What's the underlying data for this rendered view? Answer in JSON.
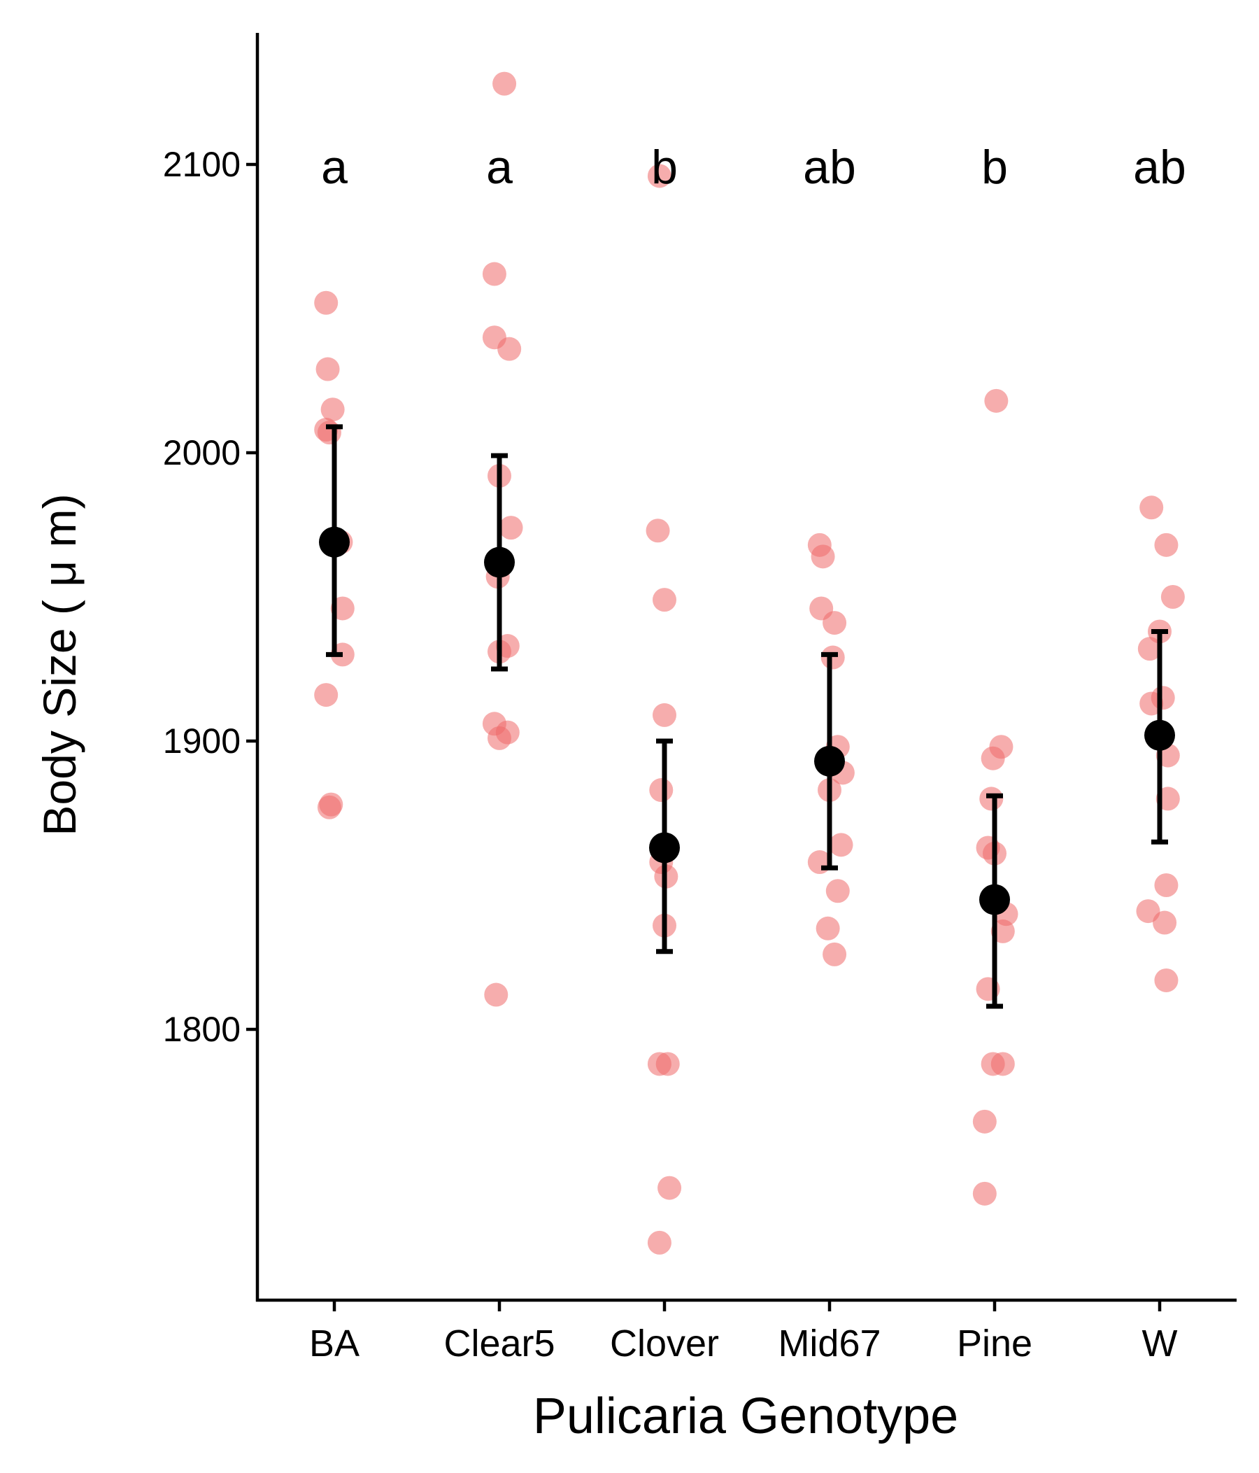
{
  "chart_data": {
    "type": "scatter",
    "title": "",
    "xlabel": "Pulicaria Genotype",
    "ylabel": "Body Size ( μ m)",
    "categories": [
      "BA",
      "Clear5",
      "Clover",
      "Mid67",
      "Pine",
      "W"
    ],
    "yticks": [
      1800,
      1900,
      2000,
      2100
    ],
    "ylim": [
      1705,
      2145
    ],
    "grid": false,
    "legend": "none",
    "colors": {
      "points": "#ee6a6a",
      "summary": "#000000",
      "axis": "#000000"
    },
    "significance_letters": [
      "a",
      "a",
      "b",
      "ab",
      "b",
      "ab"
    ],
    "summary": [
      {
        "category": "BA",
        "mean": 1969,
        "lower": 1930,
        "upper": 2009
      },
      {
        "category": "Clear5",
        "mean": 1962,
        "lower": 1925,
        "upper": 1999
      },
      {
        "category": "Clover",
        "mean": 1863,
        "lower": 1827,
        "upper": 1900
      },
      {
        "category": "Mid67",
        "mean": 1893,
        "lower": 1856,
        "upper": 1930
      },
      {
        "category": "Pine",
        "mean": 1845,
        "lower": 1808,
        "upper": 1881
      },
      {
        "category": "W",
        "mean": 1902,
        "lower": 1865,
        "upper": 1938
      }
    ],
    "points": [
      {
        "category": "BA",
        "y": 2052,
        "dx": -0.05
      },
      {
        "category": "BA",
        "y": 2029,
        "dx": -0.04
      },
      {
        "category": "BA",
        "y": 2015,
        "dx": -0.01
      },
      {
        "category": "BA",
        "y": 2008,
        "dx": -0.05
      },
      {
        "category": "BA",
        "y": 2007,
        "dx": -0.03
      },
      {
        "category": "BA",
        "y": 1969,
        "dx": 0.04
      },
      {
        "category": "BA",
        "y": 1946,
        "dx": 0.05
      },
      {
        "category": "BA",
        "y": 1930,
        "dx": 0.05
      },
      {
        "category": "BA",
        "y": 1916,
        "dx": -0.05
      },
      {
        "category": "BA",
        "y": 1878,
        "dx": -0.02
      },
      {
        "category": "BA",
        "y": 1877,
        "dx": -0.03
      },
      {
        "category": "Clear5",
        "y": 2128,
        "dx": 0.03
      },
      {
        "category": "Clear5",
        "y": 2062,
        "dx": -0.03
      },
      {
        "category": "Clear5",
        "y": 2040,
        "dx": -0.03
      },
      {
        "category": "Clear5",
        "y": 2036,
        "dx": 0.06
      },
      {
        "category": "Clear5",
        "y": 1992,
        "dx": 0.0
      },
      {
        "category": "Clear5",
        "y": 1974,
        "dx": 0.07
      },
      {
        "category": "Clear5",
        "y": 1957,
        "dx": -0.01
      },
      {
        "category": "Clear5",
        "y": 1933,
        "dx": 0.05
      },
      {
        "category": "Clear5",
        "y": 1931,
        "dx": 0.0
      },
      {
        "category": "Clear5",
        "y": 1906,
        "dx": -0.03
      },
      {
        "category": "Clear5",
        "y": 1903,
        "dx": 0.05
      },
      {
        "category": "Clear5",
        "y": 1901,
        "dx": 0.0
      },
      {
        "category": "Clear5",
        "y": 1812,
        "dx": -0.02
      },
      {
        "category": "Clover",
        "y": 2096,
        "dx": -0.03
      },
      {
        "category": "Clover",
        "y": 1973,
        "dx": -0.04
      },
      {
        "category": "Clover",
        "y": 1949,
        "dx": 0.0
      },
      {
        "category": "Clover",
        "y": 1909,
        "dx": 0.0
      },
      {
        "category": "Clover",
        "y": 1883,
        "dx": -0.02
      },
      {
        "category": "Clover",
        "y": 1858,
        "dx": -0.02
      },
      {
        "category": "Clover",
        "y": 1853,
        "dx": 0.01
      },
      {
        "category": "Clover",
        "y": 1836,
        "dx": 0.0
      },
      {
        "category": "Clover",
        "y": 1788,
        "dx": -0.03
      },
      {
        "category": "Clover",
        "y": 1788,
        "dx": 0.02
      },
      {
        "category": "Clover",
        "y": 1745,
        "dx": 0.03
      },
      {
        "category": "Clover",
        "y": 1726,
        "dx": -0.03
      },
      {
        "category": "Mid67",
        "y": 1968,
        "dx": -0.06
      },
      {
        "category": "Mid67",
        "y": 1964,
        "dx": -0.04
      },
      {
        "category": "Mid67",
        "y": 1946,
        "dx": -0.05
      },
      {
        "category": "Mid67",
        "y": 1941,
        "dx": 0.03
      },
      {
        "category": "Mid67",
        "y": 1929,
        "dx": 0.02
      },
      {
        "category": "Mid67",
        "y": 1898,
        "dx": 0.05
      },
      {
        "category": "Mid67",
        "y": 1889,
        "dx": 0.08
      },
      {
        "category": "Mid67",
        "y": 1883,
        "dx": 0.0
      },
      {
        "category": "Mid67",
        "y": 1864,
        "dx": 0.07
      },
      {
        "category": "Mid67",
        "y": 1858,
        "dx": -0.06
      },
      {
        "category": "Mid67",
        "y": 1848,
        "dx": 0.05
      },
      {
        "category": "Mid67",
        "y": 1835,
        "dx": -0.01
      },
      {
        "category": "Mid67",
        "y": 1826,
        "dx": 0.03
      },
      {
        "category": "Pine",
        "y": 2018,
        "dx": 0.01
      },
      {
        "category": "Pine",
        "y": 1898,
        "dx": 0.04
      },
      {
        "category": "Pine",
        "y": 1894,
        "dx": -0.01
      },
      {
        "category": "Pine",
        "y": 1880,
        "dx": -0.02
      },
      {
        "category": "Pine",
        "y": 1863,
        "dx": -0.04
      },
      {
        "category": "Pine",
        "y": 1861,
        "dx": 0.0
      },
      {
        "category": "Pine",
        "y": 1840,
        "dx": 0.07
      },
      {
        "category": "Pine",
        "y": 1834,
        "dx": 0.05
      },
      {
        "category": "Pine",
        "y": 1814,
        "dx": -0.04
      },
      {
        "category": "Pine",
        "y": 1788,
        "dx": -0.01
      },
      {
        "category": "Pine",
        "y": 1788,
        "dx": 0.05
      },
      {
        "category": "Pine",
        "y": 1768,
        "dx": -0.06
      },
      {
        "category": "Pine",
        "y": 1743,
        "dx": -0.06
      },
      {
        "category": "W",
        "y": 1981,
        "dx": -0.05
      },
      {
        "category": "W",
        "y": 1968,
        "dx": 0.04
      },
      {
        "category": "W",
        "y": 1950,
        "dx": 0.08
      },
      {
        "category": "W",
        "y": 1938,
        "dx": 0.0
      },
      {
        "category": "W",
        "y": 1932,
        "dx": -0.06
      },
      {
        "category": "W",
        "y": 1915,
        "dx": 0.02
      },
      {
        "category": "W",
        "y": 1913,
        "dx": -0.05
      },
      {
        "category": "W",
        "y": 1895,
        "dx": 0.05
      },
      {
        "category": "W",
        "y": 1880,
        "dx": 0.05
      },
      {
        "category": "W",
        "y": 1850,
        "dx": 0.04
      },
      {
        "category": "W",
        "y": 1841,
        "dx": -0.07
      },
      {
        "category": "W",
        "y": 1837,
        "dx": 0.03
      },
      {
        "category": "W",
        "y": 1817,
        "dx": 0.04
      }
    ]
  }
}
